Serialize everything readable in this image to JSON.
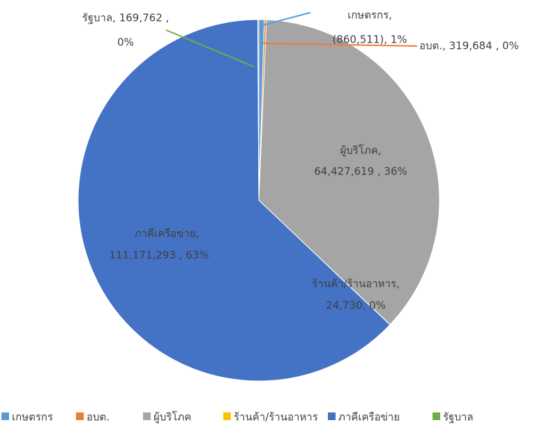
{
  "chart_data": {
    "type": "pie",
    "categories": [
      "เกษตรกร",
      "อบต.",
      "ผู้บริโภค",
      "ร้านค้า/ร้านอาหาร",
      "ภาคีเครือข่าย",
      "รัฐบาล"
    ],
    "values": [
      860511,
      319684,
      64427619,
      24730,
      111171293,
      169762
    ],
    "colors": [
      "#5b9bd5",
      "#ed7d31",
      "#a5a5a5",
      "#ffc000",
      "#4472c4",
      "#70ad47"
    ],
    "data_labels": [
      [
        "เกษตรกร,",
        "(860,511), 1%"
      ],
      [
        "อบต.,  319,684 , 0%"
      ],
      [
        "ผู้บริโภค,",
        "64,427,619 , 36%"
      ],
      [
        "ร้านค้า/ร้านอาหาร,",
        "24,730, 0%"
      ],
      [
        "ภาคีเครือข่าย,",
        "111,171,293 , 63%"
      ],
      [
        "รัฐบาล,  169,762 ,",
        "0%"
      ]
    ],
    "legend": "bottom"
  }
}
